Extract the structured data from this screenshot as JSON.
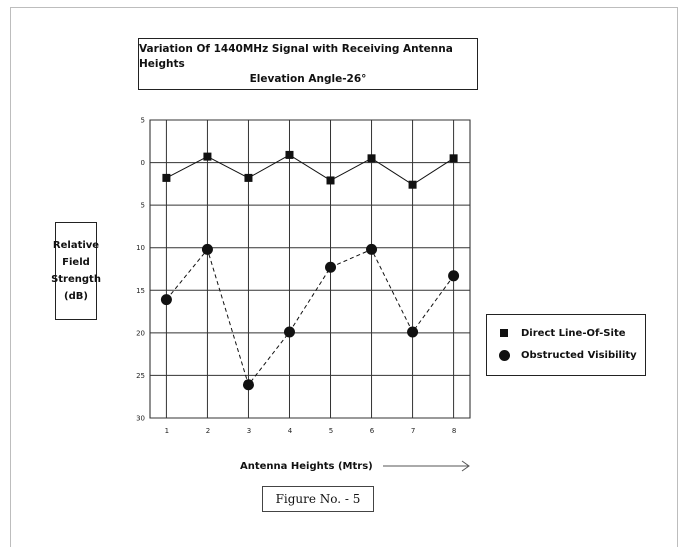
{
  "title": {
    "line1": "Variation Of 1440MHz Signal with Receiving Antenna Heights",
    "line2": "Elevation Angle-26°"
  },
  "ylabel": {
    "lines": [
      "Relative",
      "Field",
      "Strength",
      "(dB)"
    ]
  },
  "xlabel": "Antenna Heights (Mtrs)",
  "figure_label": "Figure No. - 5",
  "legend": {
    "series1": "Direct Line-Of-Site",
    "series2": "Obstructed Visibility"
  },
  "chart_data": {
    "type": "line",
    "x": [
      1,
      2,
      3,
      4,
      5,
      6,
      7,
      8
    ],
    "x_tick_labels": [
      "1",
      "2",
      "3",
      "4",
      "5",
      "6",
      "7",
      "8"
    ],
    "y_tick_labels": [
      "5",
      "0",
      "5",
      "10",
      "15",
      "20",
      "25",
      "30"
    ],
    "y_tick_values": [
      5,
      0,
      -5,
      -10,
      -15,
      -20,
      -25,
      -30
    ],
    "ylim": [
      -30,
      5
    ],
    "grid": true,
    "legend_position": "right",
    "series": [
      {
        "name": "Direct Line-Of-Site",
        "marker": "square",
        "line_style": "solid",
        "values": [
          -1.8,
          0.7,
          -1.8,
          0.9,
          -2.1,
          0.5,
          -2.6,
          0.5
        ]
      },
      {
        "name": "Obstructed Visibility",
        "marker": "circle",
        "line_style": "dashed",
        "values": [
          -16.1,
          -10.2,
          -26.1,
          -19.9,
          -12.3,
          -10.2,
          -19.9,
          -13.3
        ]
      }
    ]
  }
}
